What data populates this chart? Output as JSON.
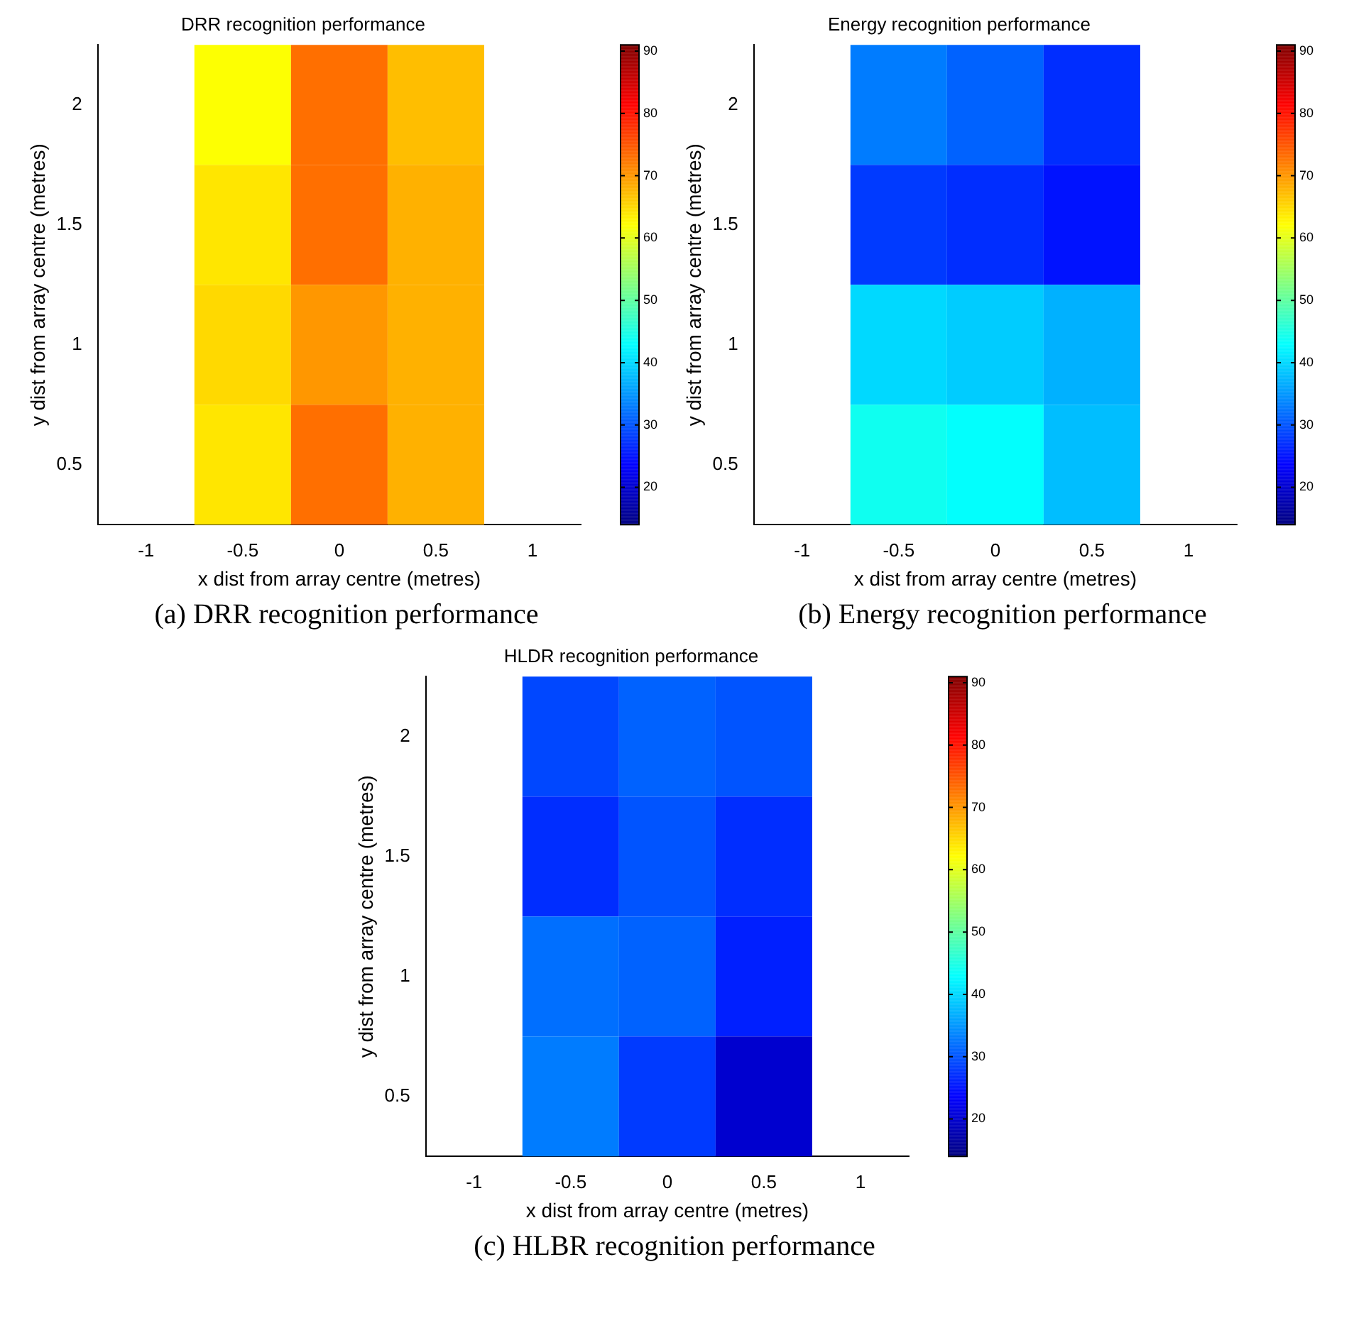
{
  "chart_data": [
    {
      "type": "heatmap",
      "title": "DRR recognition performance",
      "xlabel": "x dist from array centre (metres)",
      "ylabel": "y dist from array centre (metres)",
      "annotations": [
        "(a) DRR recognition performance"
      ],
      "categories": [
        "-1",
        "-0.5",
        "0",
        "0.5",
        "1"
      ],
      "y_categories": [
        "2",
        "1.5",
        "1",
        "0.5"
      ],
      "cells": [
        [
          null,
          62,
          73,
          67,
          null
        ],
        [
          null,
          64,
          73,
          68,
          null
        ],
        [
          null,
          65,
          70,
          68,
          null
        ],
        [
          null,
          64,
          73,
          68,
          null
        ]
      ],
      "clim": [
        14,
        91
      ],
      "cticks": [
        20,
        30,
        40,
        50,
        60,
        70,
        80,
        90
      ]
    },
    {
      "type": "heatmap",
      "title": "Energy recognition performance",
      "xlabel": "x dist from array centre (metres)",
      "ylabel": "y dist from array centre (metres)",
      "annotations": [
        "(b) Energy recognition performance"
      ],
      "categories": [
        "-1",
        "-0.5",
        "0",
        "0.5",
        "1"
      ],
      "y_categories": [
        "2",
        "1.5",
        "1",
        "0.5"
      ],
      "cells": [
        [
          null,
          33,
          31,
          27,
          null
        ],
        [
          null,
          28,
          27,
          25,
          null
        ],
        [
          null,
          40,
          39,
          37,
          null
        ],
        [
          null,
          44,
          43,
          38,
          null
        ]
      ],
      "clim": [
        14,
        91
      ],
      "cticks": [
        20,
        30,
        40,
        50,
        60,
        70,
        80,
        90
      ]
    },
    {
      "type": "heatmap",
      "title": "HLDR recognition performance",
      "xlabel": "x dist from array centre (metres)",
      "ylabel": "y dist from array centre (metres)",
      "annotations": [
        "(c) HLBR recognition performance"
      ],
      "categories": [
        "-1",
        "-0.5",
        "0",
        "0.5",
        "1"
      ],
      "y_categories": [
        "2",
        "1.5",
        "1",
        "0.5"
      ],
      "cells": [
        [
          null,
          29,
          31,
          30,
          null
        ],
        [
          null,
          27,
          30,
          27,
          null
        ],
        [
          null,
          32,
          31,
          26,
          null
        ],
        [
          null,
          33,
          28,
          20,
          null
        ]
      ],
      "clim": [
        14,
        91
      ],
      "cticks": [
        20,
        30,
        40,
        50,
        60,
        70,
        80,
        90
      ]
    }
  ]
}
